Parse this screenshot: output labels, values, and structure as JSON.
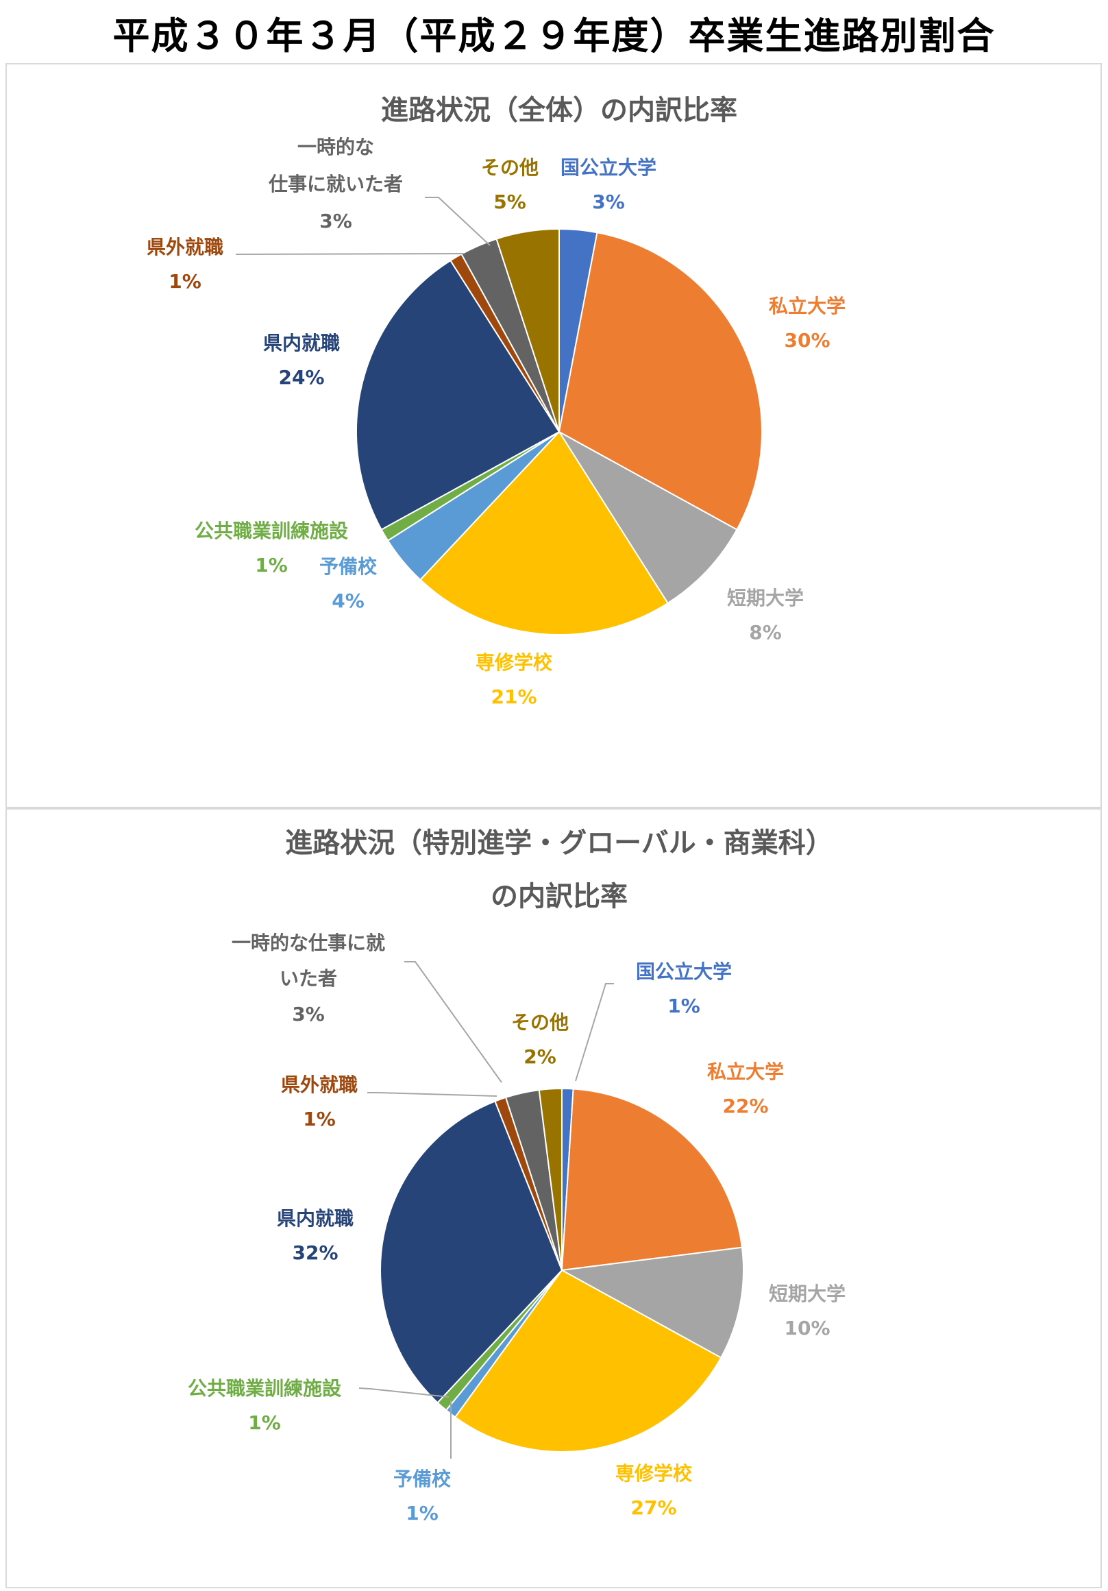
{
  "page_title": "平成３０年３月（平成２９年度）卒業生進路別割合",
  "colors": {
    "national_univ": "#4472C4",
    "private_univ": "#ED7D31",
    "junior_college": "#A5A5A5",
    "vocational": "#FFC000",
    "prep_school": "#5B9BD5",
    "public_training": "#70AD47",
    "local_employment": "#264478",
    "outside_employment": "#9E480E",
    "temporary_work": "#636363",
    "other": "#997300"
  },
  "chart_data": [
    {
      "type": "pie",
      "title_lines": [
        "進路状況（全体）の内訳比率"
      ],
      "slices": [
        {
          "label_lines": [
            "国公立大学"
          ],
          "value": 3,
          "display": "3%",
          "color": "#4472C4"
        },
        {
          "label_lines": [
            "私立大学"
          ],
          "value": 30,
          "display": "30%",
          "color": "#ED7D31"
        },
        {
          "label_lines": [
            "短期大学"
          ],
          "value": 8,
          "display": "8%",
          "color": "#A5A5A5"
        },
        {
          "label_lines": [
            "専修学校"
          ],
          "value": 21,
          "display": "21%",
          "color": "#FFC000"
        },
        {
          "label_lines": [
            "予備校"
          ],
          "value": 4,
          "display": "4%",
          "color": "#5B9BD5"
        },
        {
          "label_lines": [
            "公共職業訓練施設"
          ],
          "value": 1,
          "display": "1%",
          "color": "#70AD47"
        },
        {
          "label_lines": [
            "県内就職"
          ],
          "value": 24,
          "display": "24%",
          "color": "#264478"
        },
        {
          "label_lines": [
            "県外就職"
          ],
          "value": 1,
          "display": "1%",
          "color": "#9E480E"
        },
        {
          "label_lines": [
            "一時的な",
            "仕事に就いた者"
          ],
          "value": 3,
          "display": "3%",
          "color": "#636363"
        },
        {
          "label_lines": [
            "その他"
          ],
          "value": 5,
          "display": "5%",
          "color": "#997300"
        }
      ]
    },
    {
      "type": "pie",
      "title_lines": [
        "進路状況（特別進学・グローバル・商業科）",
        "の内訳比率"
      ],
      "slices": [
        {
          "label_lines": [
            "国公立大学"
          ],
          "value": 1,
          "display": "1%",
          "color": "#4472C4"
        },
        {
          "label_lines": [
            "私立大学"
          ],
          "value": 22,
          "display": "22%",
          "color": "#ED7D31"
        },
        {
          "label_lines": [
            "短期大学"
          ],
          "value": 10,
          "display": "10%",
          "color": "#A5A5A5"
        },
        {
          "label_lines": [
            "専修学校"
          ],
          "value": 27,
          "display": "27%",
          "color": "#FFC000"
        },
        {
          "label_lines": [
            "予備校"
          ],
          "value": 1,
          "display": "1%",
          "color": "#5B9BD5"
        },
        {
          "label_lines": [
            "公共職業訓練施設"
          ],
          "value": 1,
          "display": "1%",
          "color": "#70AD47"
        },
        {
          "label_lines": [
            "県内就職"
          ],
          "value": 32,
          "display": "32%",
          "color": "#264478"
        },
        {
          "label_lines": [
            "県外就職"
          ],
          "value": 1,
          "display": "1%",
          "color": "#9E480E"
        },
        {
          "label_lines": [
            "一時的な仕事に就",
            "いた者"
          ],
          "value": 3,
          "display": "3%",
          "color": "#636363"
        },
        {
          "label_lines": [
            "その他"
          ],
          "value": 2,
          "display": "2%",
          "color": "#997300"
        }
      ]
    }
  ]
}
